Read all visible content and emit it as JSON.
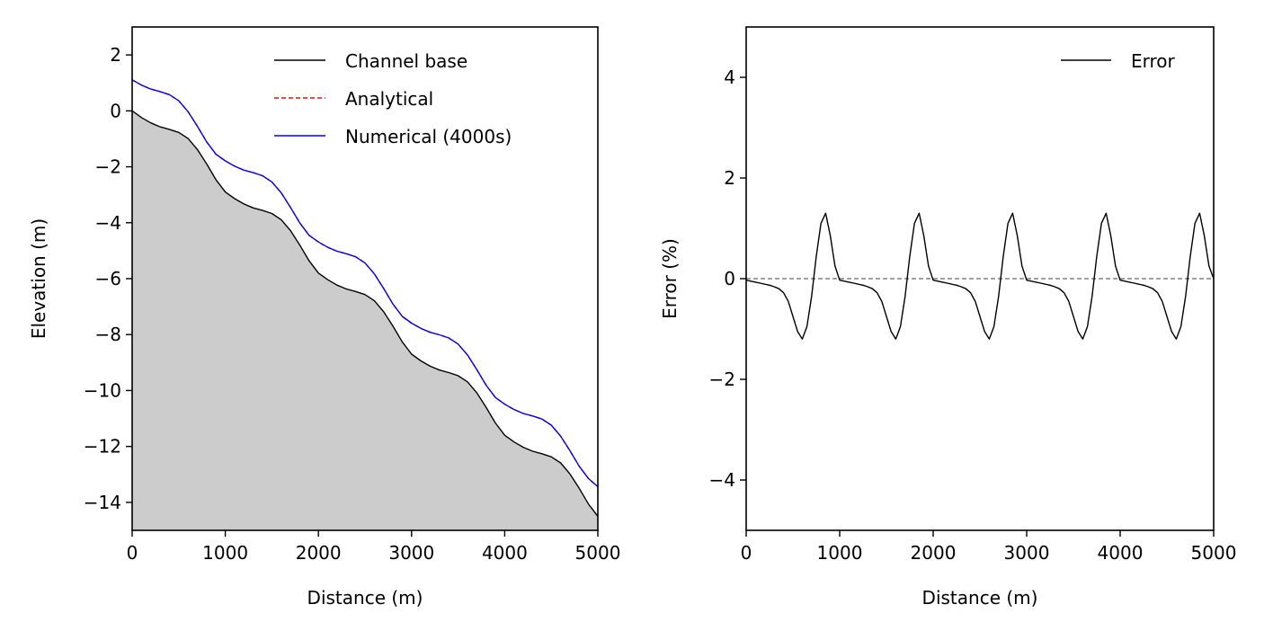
{
  "chart_data": [
    {
      "type": "line",
      "xlabel": "Distance (m)",
      "ylabel": "Elevation (m)",
      "xlim": [
        0,
        5000
      ],
      "ylim": [
        -15,
        3
      ],
      "xticks": [
        0,
        1000,
        2000,
        3000,
        4000,
        5000
      ],
      "yticks": [
        -14,
        -12,
        -10,
        -8,
        -6,
        -4,
        -2,
        0,
        2
      ],
      "grid": false,
      "legend": "top-right",
      "fill_below_first_series": "#cccccc",
      "x": [
        0,
        100,
        200,
        300,
        400,
        500,
        600,
        700,
        800,
        900,
        1000,
        1100,
        1200,
        1300,
        1400,
        1500,
        1600,
        1700,
        1800,
        1900,
        2000,
        2100,
        2200,
        2300,
        2400,
        2500,
        2600,
        2700,
        2800,
        2900,
        3000,
        3100,
        3200,
        3300,
        3400,
        3500,
        3600,
        3700,
        3800,
        3900,
        4000,
        4100,
        4200,
        4300,
        4400,
        4500,
        4600,
        4700,
        4800,
        4900,
        5000
      ],
      "series": [
        {
          "name": "Channel base",
          "color": "#000000",
          "style": "solid",
          "values": [
            0,
            -0.24,
            -0.43,
            -0.57,
            -0.66,
            -0.77,
            -0.99,
            -1.38,
            -1.9,
            -2.46,
            -2.9,
            -3.14,
            -3.33,
            -3.47,
            -3.56,
            -3.67,
            -3.89,
            -4.28,
            -4.8,
            -5.36,
            -5.8,
            -6.04,
            -6.23,
            -6.37,
            -6.46,
            -6.57,
            -6.79,
            -7.18,
            -7.7,
            -8.26,
            -8.7,
            -8.94,
            -9.13,
            -9.27,
            -9.36,
            -9.47,
            -9.69,
            -10.08,
            -10.6,
            -11.16,
            -11.6,
            -11.84,
            -12.03,
            -12.17,
            -12.26,
            -12.37,
            -12.59,
            -12.98,
            -13.5,
            -14.06,
            -14.5
          ]
        },
        {
          "name": "Analytical",
          "color": "#ff0000",
          "style": "dashed",
          "values": [
            1.11,
            0.92,
            0.78,
            0.69,
            0.58,
            0.36,
            -0.03,
            -0.55,
            -1.11,
            -1.55,
            -1.79,
            -1.98,
            -2.12,
            -2.21,
            -2.32,
            -2.54,
            -2.93,
            -3.45,
            -4.01,
            -4.45,
            -4.69,
            -4.88,
            -5.02,
            -5.11,
            -5.22,
            -5.44,
            -5.83,
            -6.35,
            -6.91,
            -7.35,
            -7.59,
            -7.78,
            -7.92,
            -8.01,
            -8.12,
            -8.34,
            -8.73,
            -9.25,
            -9.81,
            -10.25,
            -10.49,
            -10.68,
            -10.82,
            -10.91,
            -11.02,
            -11.24,
            -11.63,
            -12.15,
            -12.71,
            -13.15,
            -13.44
          ]
        },
        {
          "name": "Numerical (4000s)",
          "color": "#0000ff",
          "style": "solid",
          "values": [
            1.11,
            0.92,
            0.78,
            0.69,
            0.58,
            0.36,
            -0.03,
            -0.55,
            -1.11,
            -1.55,
            -1.79,
            -1.98,
            -2.12,
            -2.21,
            -2.32,
            -2.54,
            -2.93,
            -3.45,
            -4.01,
            -4.45,
            -4.69,
            -4.88,
            -5.02,
            -5.11,
            -5.22,
            -5.44,
            -5.83,
            -6.35,
            -6.91,
            -7.35,
            -7.59,
            -7.78,
            -7.92,
            -8.01,
            -8.12,
            -8.34,
            -8.73,
            -9.25,
            -9.81,
            -10.25,
            -10.49,
            -10.68,
            -10.82,
            -10.91,
            -11.02,
            -11.24,
            -11.63,
            -12.15,
            -12.71,
            -13.15,
            -13.44
          ]
        }
      ]
    },
    {
      "type": "line",
      "xlabel": "Distance (m)",
      "ylabel": "Error (%)",
      "xlim": [
        0,
        5000
      ],
      "ylim": [
        -5,
        5
      ],
      "xticks": [
        0,
        1000,
        2000,
        3000,
        4000,
        5000
      ],
      "yticks": [
        -4,
        -2,
        0,
        2,
        4
      ],
      "grid": false,
      "legend": "top-right",
      "reference_line": {
        "y": 0,
        "color": "#808080",
        "style": "dashed"
      },
      "x": [
        0,
        50,
        100,
        150,
        200,
        250,
        300,
        350,
        400,
        450,
        500,
        550,
        600,
        650,
        700,
        750,
        800,
        850,
        900,
        950,
        1000,
        1050,
        1100,
        1150,
        1200,
        1250,
        1300,
        1350,
        1400,
        1450,
        1500,
        1550,
        1600,
        1650,
        1700,
        1750,
        1800,
        1850,
        1900,
        1950,
        2000,
        2050,
        2100,
        2150,
        2200,
        2250,
        2300,
        2350,
        2400,
        2450,
        2500,
        2550,
        2600,
        2650,
        2700,
        2750,
        2800,
        2850,
        2900,
        2950,
        3000,
        3050,
        3100,
        3150,
        3200,
        3250,
        3300,
        3350,
        3400,
        3450,
        3500,
        3550,
        3600,
        3650,
        3700,
        3750,
        3800,
        3850,
        3900,
        3950,
        4000,
        4050,
        4100,
        4150,
        4200,
        4250,
        4300,
        4350,
        4400,
        4450,
        4500,
        4550,
        4600,
        4650,
        4700,
        4750,
        4800,
        4850,
        4900,
        4950,
        5000
      ],
      "series": [
        {
          "name": "Error",
          "color": "#000000",
          "style": "solid",
          "values": [
            -0.03,
            -0.05,
            -0.07,
            -0.09,
            -0.11,
            -0.13,
            -0.16,
            -0.2,
            -0.28,
            -0.45,
            -0.75,
            -1.05,
            -1.2,
            -0.95,
            -0.35,
            0.45,
            1.1,
            1.3,
            0.85,
            0.25,
            -0.03,
            -0.05,
            -0.07,
            -0.09,
            -0.11,
            -0.13,
            -0.16,
            -0.2,
            -0.28,
            -0.45,
            -0.75,
            -1.05,
            -1.2,
            -0.95,
            -0.35,
            0.45,
            1.1,
            1.3,
            0.85,
            0.25,
            -0.03,
            -0.05,
            -0.07,
            -0.09,
            -0.11,
            -0.13,
            -0.16,
            -0.2,
            -0.28,
            -0.45,
            -0.75,
            -1.05,
            -1.2,
            -0.95,
            -0.35,
            0.45,
            1.1,
            1.3,
            0.85,
            0.25,
            -0.03,
            -0.05,
            -0.07,
            -0.09,
            -0.11,
            -0.13,
            -0.16,
            -0.2,
            -0.28,
            -0.45,
            -0.75,
            -1.05,
            -1.2,
            -0.95,
            -0.35,
            0.45,
            1.1,
            1.3,
            0.85,
            0.25,
            -0.03,
            -0.05,
            -0.07,
            -0.09,
            -0.11,
            -0.13,
            -0.16,
            -0.2,
            -0.28,
            -0.45,
            -0.75,
            -1.05,
            -1.2,
            -0.95,
            -0.35,
            0.45,
            1.1,
            1.3,
            0.85,
            0.25,
            0
          ]
        }
      ]
    }
  ]
}
